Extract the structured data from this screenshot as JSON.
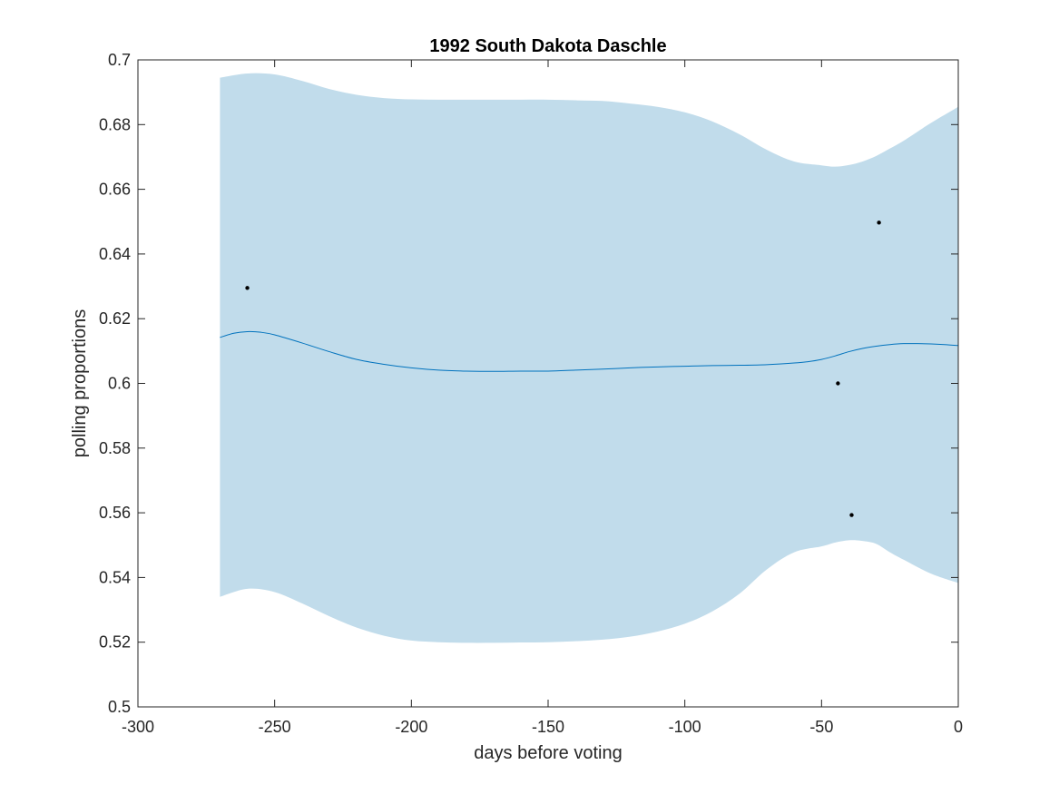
{
  "chart_data": {
    "type": "line",
    "title": "1992 South Dakota Daschle",
    "xlabel": "days before voting",
    "ylabel": "polling proportions",
    "xlim": [
      -300,
      0
    ],
    "ylim": [
      0.5,
      0.7
    ],
    "x_ticks": [
      -300,
      -250,
      -200,
      -150,
      -100,
      -50,
      0
    ],
    "x_tick_labels": [
      "-300",
      "-250",
      "-200",
      "-150",
      "-100",
      "-50",
      "0"
    ],
    "y_ticks": [
      0.5,
      0.52,
      0.54,
      0.56,
      0.58,
      0.6,
      0.62,
      0.64,
      0.66,
      0.68,
      0.7
    ],
    "y_tick_labels": [
      "0.5",
      "0.52",
      "0.54",
      "0.56",
      "0.58",
      "0.6",
      "0.62",
      "0.64",
      "0.66",
      "0.68",
      "0.7"
    ],
    "grid": false,
    "colors": {
      "band": "#c1dceb",
      "mean_line": "#0072bd",
      "points": "#000000",
      "axes": "#262626"
    },
    "series": [
      {
        "kind": "band",
        "x": [
          -270,
          -260,
          -250,
          -240,
          -230,
          -220,
          -210,
          -200,
          -190,
          -180,
          -170,
          -160,
          -150,
          -140,
          -130,
          -120,
          -110,
          -100,
          -90,
          -80,
          -70,
          -60,
          -50,
          -45,
          -40,
          -35,
          -30,
          -25,
          -20,
          -10,
          0
        ],
        "lower": [
          0.534,
          0.5365,
          0.5355,
          0.532,
          0.528,
          0.5245,
          0.522,
          0.5205,
          0.52,
          0.5198,
          0.5198,
          0.5199,
          0.52,
          0.5203,
          0.5208,
          0.5217,
          0.5233,
          0.5257,
          0.5295,
          0.535,
          0.5425,
          0.5478,
          0.5496,
          0.5508,
          0.5515,
          0.5513,
          0.5504,
          0.5478,
          0.5455,
          0.5412,
          0.5383
        ],
        "upper": [
          0.6945,
          0.6958,
          0.6955,
          0.6935,
          0.691,
          0.6892,
          0.6882,
          0.6878,
          0.6877,
          0.6877,
          0.6877,
          0.6877,
          0.6877,
          0.6875,
          0.6873,
          0.6865,
          0.6855,
          0.6838,
          0.681,
          0.677,
          0.6722,
          0.6686,
          0.6674,
          0.667,
          0.6675,
          0.6686,
          0.6703,
          0.6726,
          0.675,
          0.6805,
          0.6855
        ]
      },
      {
        "kind": "line",
        "x": [
          -270,
          -265,
          -260,
          -255,
          -250,
          -240,
          -230,
          -220,
          -210,
          -200,
          -190,
          -180,
          -170,
          -160,
          -150,
          -140,
          -130,
          -120,
          -110,
          -100,
          -90,
          -80,
          -70,
          -60,
          -55,
          -50,
          -45,
          -40,
          -35,
          -30,
          -25,
          -20,
          -15,
          -10,
          -5,
          0
        ],
        "y": [
          0.6142,
          0.6155,
          0.616,
          0.6158,
          0.615,
          0.6125,
          0.6098,
          0.6074,
          0.6059,
          0.6048,
          0.6041,
          0.6038,
          0.6037,
          0.6038,
          0.6038,
          0.6041,
          0.6044,
          0.6048,
          0.6051,
          0.6053,
          0.6055,
          0.6056,
          0.6058,
          0.6063,
          0.6067,
          0.6074,
          0.6085,
          0.6098,
          0.6108,
          0.6115,
          0.612,
          0.6123,
          0.6123,
          0.6122,
          0.612,
          0.6117
        ]
      },
      {
        "kind": "points",
        "x": [
          -260,
          -44,
          -39,
          -29
        ],
        "y": [
          0.6295,
          0.6,
          0.5593,
          0.6497
        ]
      }
    ]
  }
}
